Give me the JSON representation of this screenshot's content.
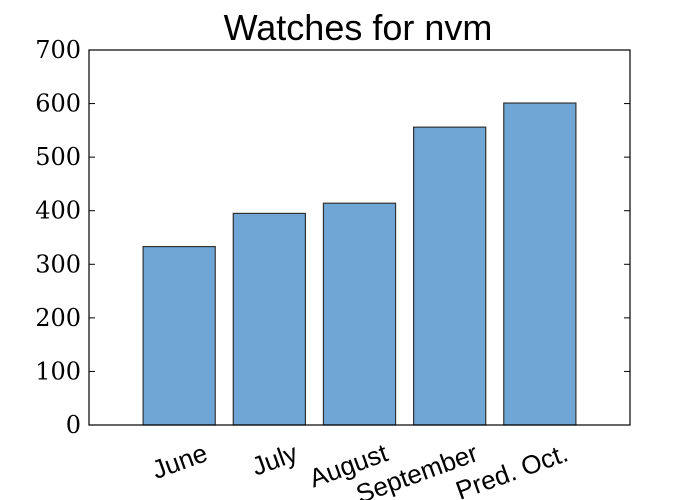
{
  "chart_data": {
    "type": "bar",
    "title": "Watches for nvm",
    "categories": [
      "June",
      "July",
      "August",
      "September",
      "Pred. Oct."
    ],
    "values": [
      333,
      395,
      414,
      556,
      601
    ],
    "xlabel": "",
    "ylabel": "",
    "ylim": [
      0,
      700
    ],
    "yticks": [
      0,
      100,
      200,
      300,
      400,
      500,
      600,
      700
    ],
    "grid": false,
    "legend": "none",
    "bar_color": "#6fa6d6",
    "bar_edge_color": "#333333"
  }
}
